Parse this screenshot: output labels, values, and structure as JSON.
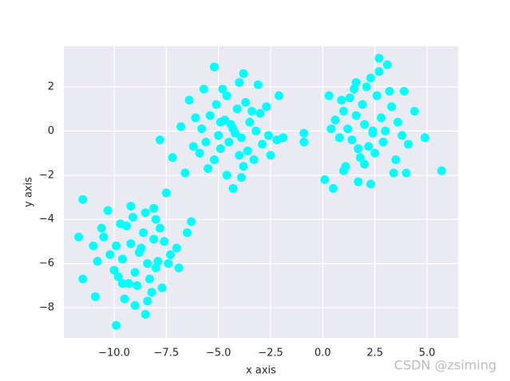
{
  "chart_data": {
    "type": "scatter",
    "xlabel": "x axis",
    "ylabel": "y axis",
    "color": "#00ffff",
    "grid": true,
    "watermark": "CSDN @zsiming",
    "xlim": [
      -12.41,
      6.49
    ],
    "ylim": [
      -9.37,
      3.84
    ],
    "xticks": [
      {
        "value": -10,
        "label": "−10.0"
      },
      {
        "value": -7.5,
        "label": "−7.5"
      },
      {
        "value": -5,
        "label": "−5.0"
      },
      {
        "value": -2.5,
        "label": "−2.5"
      },
      {
        "value": 0,
        "label": "0.0"
      },
      {
        "value": 2.5,
        "label": "2.5"
      },
      {
        "value": 5,
        "label": "5.0"
      }
    ],
    "yticks": [
      {
        "value": -8,
        "label": "−8"
      },
      {
        "value": -6,
        "label": "−6"
      },
      {
        "value": -4,
        "label": "−4"
      },
      {
        "value": -2,
        "label": "−2"
      },
      0,
      2
    ],
    "x": [
      -8.8,
      -9.2,
      -8.4,
      -9.6,
      -8.1,
      -9.0,
      -8.6,
      -9.9,
      -7.9,
      -8.3,
      -9.4,
      -10.2,
      -8.9,
      -7.6,
      -9.1,
      -8.0,
      -10.5,
      -8.7,
      -9.3,
      -7.8,
      -10.0,
      -8.5,
      -9.7,
      -7.4,
      -8.2,
      -10.8,
      -9.5,
      -8.0,
      -7.0,
      -9.8,
      -11.5,
      -11.7,
      -9.9,
      -8.5,
      -7.5,
      -6.3,
      -11.5,
      -10.9,
      -7.3,
      -6.5,
      -10.3,
      -9.0,
      -8.1,
      -7.7,
      -10.6,
      -9.2,
      -6.9,
      -11.0,
      -8.4,
      -9.6,
      -4.3,
      -4.7,
      -3.9,
      -5.0,
      -3.5,
      -4.1,
      -4.9,
      -3.2,
      -5.4,
      -4.5,
      -3.7,
      -4.0,
      -5.8,
      -2.9,
      -4.6,
      -3.4,
      -5.2,
      -4.2,
      -3.8,
      -5.6,
      -3.0,
      -4.8,
      -4.4,
      -6.1,
      -2.6,
      -5.1,
      -3.6,
      -4.0,
      -5.5,
      -3.3,
      -5.2,
      -3.8,
      -6.8,
      -7.8,
      -4.3,
      -7.2,
      -6.6,
      -2.2,
      -1.9,
      -2.1,
      -6.4,
      -5.9,
      -2.7,
      -3.1,
      -5.7,
      -4.6,
      -2.5,
      -6.2,
      -3.9,
      -4.9,
      2.0,
      1.6,
      2.4,
      1.2,
      2.8,
      1.9,
      2.2,
      1.4,
      3.0,
      2.6,
      1.0,
      1.8,
      3.3,
      2.1,
      0.8,
      2.5,
      1.5,
      3.6,
      1.7,
      2.9,
      0.6,
      2.3,
      3.8,
      1.1,
      2.0,
      1.3,
      3.2,
      2.7,
      0.9,
      1.6,
      2.7,
      3.1,
      5.7,
      4.9,
      -0.9,
      -0.9,
      0.5,
      4.0,
      1.7,
      2.3,
      0.1,
      4.4,
      3.5,
      0.3,
      3.9,
      1.0,
      2.4,
      4.1,
      0.4,
      3.4
    ],
    "values": [
      -5.5,
      -5.1,
      -6.0,
      -5.8,
      -4.9,
      -6.4,
      -4.6,
      -5.2,
      -5.9,
      -6.7,
      -4.3,
      -5.6,
      -7.0,
      -5.0,
      -3.9,
      -6.2,
      -4.8,
      -5.3,
      -6.9,
      -4.4,
      -6.3,
      -3.7,
      -4.2,
      -6.0,
      -7.3,
      -5.9,
      -7.6,
      -4.0,
      -5.3,
      -6.6,
      -3.1,
      -4.8,
      -8.8,
      -8.3,
      -2.8,
      -4.1,
      -6.7,
      -7.5,
      -5.6,
      -4.6,
      -3.6,
      -7.9,
      -3.5,
      -7.1,
      -4.4,
      -3.4,
      -6.2,
      -5.2,
      -7.7,
      -6.9,
      0.1,
      0.5,
      -0.3,
      -0.2,
      0.4,
      1.0,
      -0.8,
      0.0,
      0.7,
      -0.5,
      1.3,
      -1.1,
      0.1,
      -0.6,
      1.6,
      0.9,
      -1.3,
      -0.1,
      -1.6,
      -0.5,
      0.8,
      1.9,
      0.3,
      0.6,
      -0.2,
      1.2,
      -0.9,
      2.2,
      -1.7,
      -1.3,
      2.9,
      2.6,
      0.2,
      -0.4,
      -2.6,
      -1.2,
      -1.9,
      -0.4,
      -0.3,
      1.6,
      1.4,
      -1.0,
      1.1,
      2.1,
      1.9,
      -2.0,
      -1.1,
      -0.7,
      -2.1,
      0.4,
      0.3,
      0.7,
      -0.1,
      0.1,
      0.6,
      1.2,
      -0.7,
      -0.4,
      0.0,
      1.6,
      0.9,
      -1.2,
      1.1,
      2.0,
      -0.3,
      -1.0,
      1.9,
      0.4,
      -0.8,
      -0.5,
      0.5,
      2.4,
      -0.2,
      -1.6,
      -1.5,
      1.5,
      1.8,
      2.7,
      1.4,
      2.2,
      3.3,
      3.0,
      -1.8,
      -0.3,
      -0.1,
      -0.5,
      -2.6,
      -1.9,
      -2.3,
      -2.4,
      -2.2,
      0.9,
      -1.3,
      1.6,
      1.8,
      -1.8,
      0.0,
      -0.6,
      0.1,
      -1.9
    ]
  }
}
